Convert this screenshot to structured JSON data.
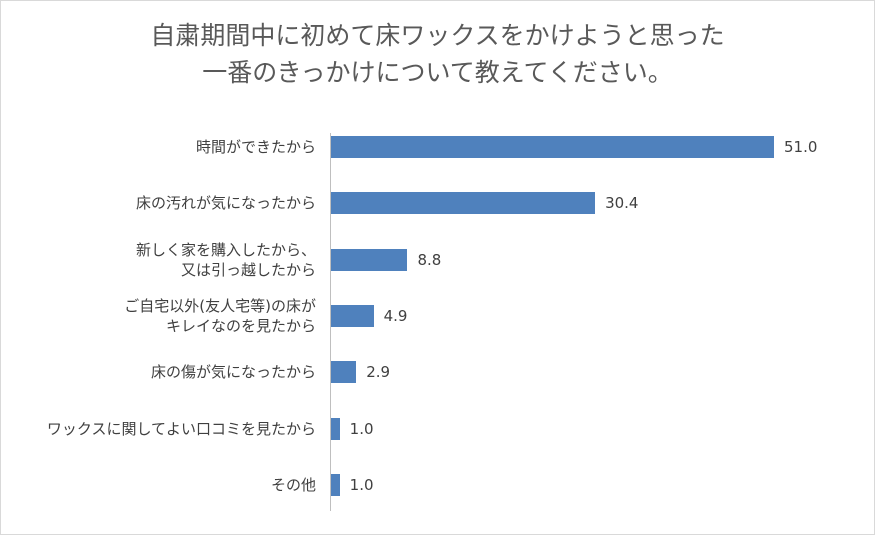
{
  "chart_data": {
    "type": "bar",
    "orientation": "horizontal",
    "title": "自粛期間中に初めて床ワックスをかけようと思った\n一番のきっかけについて教えてください。",
    "categories": [
      "時間ができたから",
      "床の汚れが気になったから",
      "新しく家を購入したから、\n又は引っ越したから",
      "ご自宅以外(友人宅等)の床が\nキレイなのを見たから",
      "床の傷が気になったから",
      "ワックスに関してよい口コミを見たから",
      "その他"
    ],
    "values": [
      51.0,
      30.4,
      8.8,
      4.9,
      2.9,
      1.0,
      1.0
    ],
    "value_labels": [
      "51.0",
      "30.4",
      "8.8",
      "4.9",
      "2.9",
      "1.0",
      "1.0"
    ],
    "color": "#4f81bd"
  }
}
